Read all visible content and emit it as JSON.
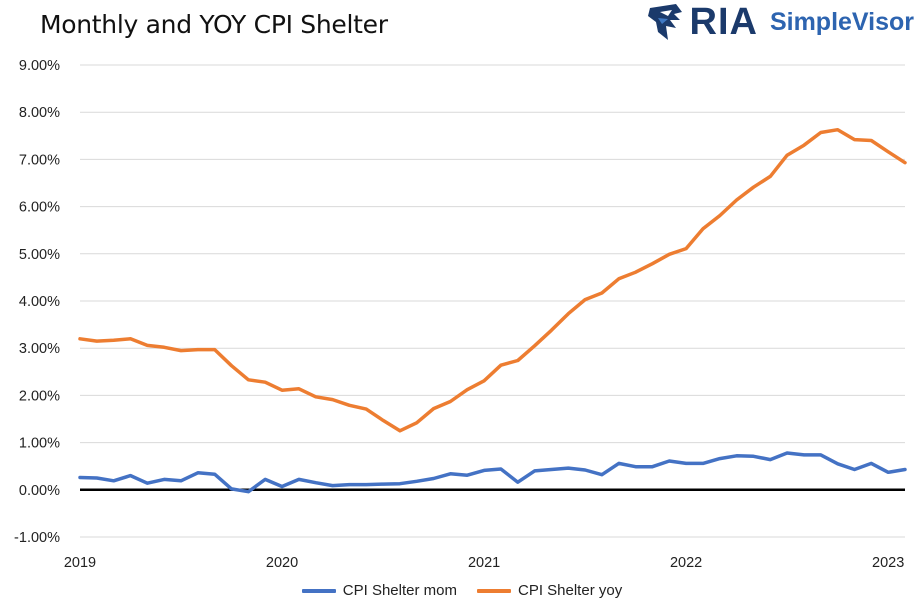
{
  "title": "Monthly and YOY CPI Shelter",
  "brand": {
    "name": "RIA",
    "product": "SimpleVisor"
  },
  "icons": {
    "logo": "eagle-head-icon"
  },
  "chart_data": {
    "type": "line",
    "title": "Monthly and YOY CPI Shelter",
    "xlabel": "",
    "ylabel": "",
    "ylim": [
      -1,
      9
    ],
    "yticks": [
      -1,
      0,
      1,
      2,
      3,
      4,
      5,
      6,
      7,
      8,
      9
    ],
    "ytick_labels": [
      "-1.00%",
      "0.00%",
      "1.00%",
      "2.00%",
      "3.00%",
      "4.00%",
      "5.00%",
      "6.00%",
      "7.00%",
      "8.00%",
      "9.00%"
    ],
    "x_tick_labels": [
      "2019",
      "2020",
      "2021",
      "2022",
      "2023"
    ],
    "x_start": "2019-01",
    "grid": true,
    "zero_line": true,
    "legend_position": "bottom",
    "series": [
      {
        "name": "CPI Shelter mom",
        "color": "#4472c4",
        "values": [
          0.26,
          0.25,
          0.19,
          0.3,
          0.14,
          0.22,
          0.19,
          0.36,
          0.33,
          0.02,
          -0.04,
          0.22,
          0.07,
          0.22,
          0.15,
          0.09,
          0.11,
          0.11,
          0.12,
          0.13,
          0.18,
          0.24,
          0.34,
          0.31,
          0.41,
          0.44,
          0.16,
          0.4,
          0.43,
          0.46,
          0.42,
          0.32,
          0.56,
          0.49,
          0.49,
          0.61,
          0.56,
          0.56,
          0.66,
          0.72,
          0.71,
          0.64,
          0.78,
          0.74,
          0.74,
          0.55,
          0.43,
          0.56,
          0.37,
          0.43
        ]
      },
      {
        "name": "CPI Shelter yoy",
        "color": "#ed7d31",
        "values": [
          3.2,
          3.15,
          3.17,
          3.2,
          3.06,
          3.02,
          2.95,
          2.97,
          2.97,
          2.63,
          2.33,
          2.28,
          2.11,
          2.14,
          1.97,
          1.91,
          1.79,
          1.71,
          1.47,
          1.25,
          1.42,
          1.72,
          1.87,
          2.12,
          2.31,
          2.64,
          2.74,
          3.05,
          3.38,
          3.73,
          4.03,
          4.17,
          4.47,
          4.61,
          4.79,
          4.99,
          5.11,
          5.53,
          5.81,
          6.14,
          6.41,
          6.64,
          7.09,
          7.3,
          7.57,
          7.63,
          7.42,
          7.4,
          7.16,
          6.93
        ]
      }
    ]
  }
}
